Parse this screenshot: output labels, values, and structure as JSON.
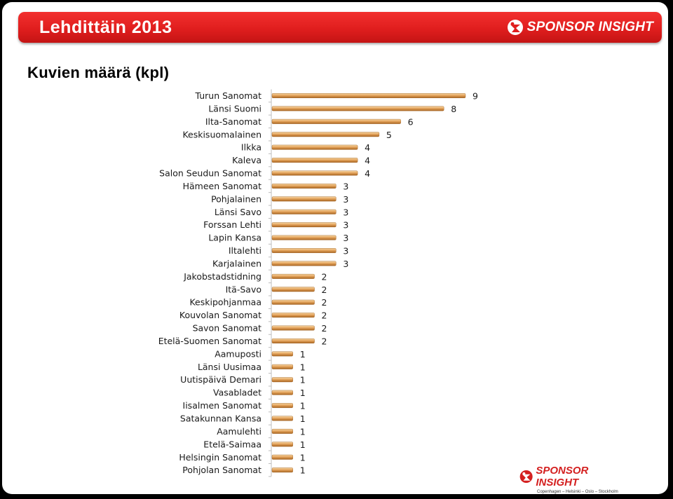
{
  "header": {
    "title": "Lehdittäin 2013",
    "brand": "SPONSOR INSIGHT"
  },
  "subtitle": "Kuvien määrä (kpl)",
  "footer": {
    "brand": "SPONSOR INSIGHT",
    "tagline": "Copenhagen – Helsinki – Oslo – Stockholm"
  },
  "colors": {
    "title_bar": "#e01e1e",
    "bar_top": "#f6d8a6",
    "bar_mid": "#e5a55e",
    "bar_bottom": "#a8641f",
    "logo_red": "#d42020"
  },
  "chart_data": {
    "type": "bar",
    "orientation": "horizontal",
    "title": "",
    "xlabel": "",
    "ylabel": "",
    "xlim": [
      0,
      9
    ],
    "grid": false,
    "legend": "none",
    "categories": [
      "Turun Sanomat",
      "Länsi Suomi",
      "Ilta-Sanomat",
      "Keskisuomalainen",
      "Ilkka",
      "Kaleva",
      "Salon Seudun Sanomat",
      "Hämeen Sanomat",
      "Pohjalainen",
      "Länsi Savo",
      "Forssan Lehti",
      "Lapin Kansa",
      "Iltalehti",
      "Karjalainen",
      "Jakobstadstidning",
      "Itä-Savo",
      "Keskipohjanmaa",
      "Kouvolan Sanomat",
      "Savon Sanomat",
      "Etelä-Suomen Sanomat",
      "Aamuposti",
      "Länsi Uusimaa",
      "Uutispäivä Demari",
      "Vasabladet",
      "Iisalmen Sanomat",
      "Satakunnan Kansa",
      "Aamulehti",
      "Etelä-Saimaa",
      "Helsingin Sanomat",
      "Pohjolan Sanomat"
    ],
    "values": [
      9,
      8,
      6,
      5,
      4,
      4,
      4,
      3,
      3,
      3,
      3,
      3,
      3,
      3,
      2,
      2,
      2,
      2,
      2,
      2,
      1,
      1,
      1,
      1,
      1,
      1,
      1,
      1,
      1,
      1
    ]
  }
}
